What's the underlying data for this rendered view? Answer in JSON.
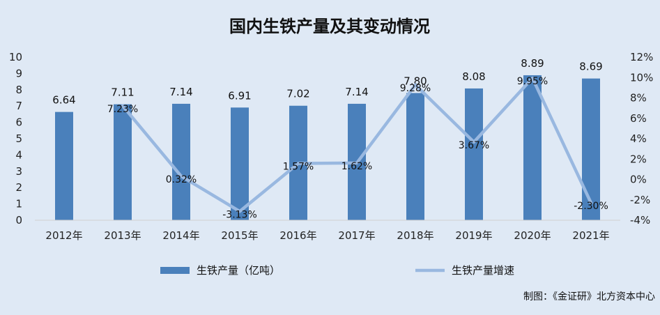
{
  "chart_data": {
    "type": "bar",
    "title": "国内生铁产量及其变动情况",
    "categories": [
      "2012年",
      "2013年",
      "2014年",
      "2015年",
      "2016年",
      "2017年",
      "2018年",
      "2019年",
      "2020年",
      "2021年"
    ],
    "series": [
      {
        "name": "生铁产量（亿吨）",
        "type": "bar",
        "axis": "left",
        "values": [
          6.64,
          7.11,
          7.14,
          6.91,
          7.02,
          7.14,
          7.8,
          8.08,
          8.89,
          8.69
        ],
        "labels": [
          "6.64",
          "7.11",
          "7.14",
          "6.91",
          "7.02",
          "7.14",
          "7.80",
          "8.08",
          "8.89",
          "8.69"
        ]
      },
      {
        "name": "生铁产量增速",
        "type": "line",
        "axis": "right",
        "values": [
          null,
          7.23,
          0.32,
          -3.13,
          1.57,
          1.62,
          9.28,
          3.67,
          9.95,
          -2.3
        ],
        "labels": [
          "",
          "7.23%",
          "0.32%",
          "-3.13%",
          "1.57%",
          "1.62%",
          "9.28%",
          "3.67%",
          "9.95%",
          "-2.30%"
        ]
      }
    ],
    "left_axis": {
      "ylim": [
        0,
        10
      ],
      "ticks": [
        "0",
        "1",
        "2",
        "3",
        "4",
        "5",
        "6",
        "7",
        "8",
        "9",
        "10"
      ]
    },
    "right_axis": {
      "ylim": [
        -4,
        12
      ],
      "ticks": [
        "-4%",
        "-2%",
        "0%",
        "2%",
        "4%",
        "6%",
        "8%",
        "10%",
        "12%"
      ]
    },
    "grid": false,
    "legend_position": "bottom",
    "colors": {
      "bar": "#4a80bb",
      "line": "#99b8e0",
      "background": "#dfe9f5"
    },
    "source": "制图：《金证研》北方资本中心"
  }
}
